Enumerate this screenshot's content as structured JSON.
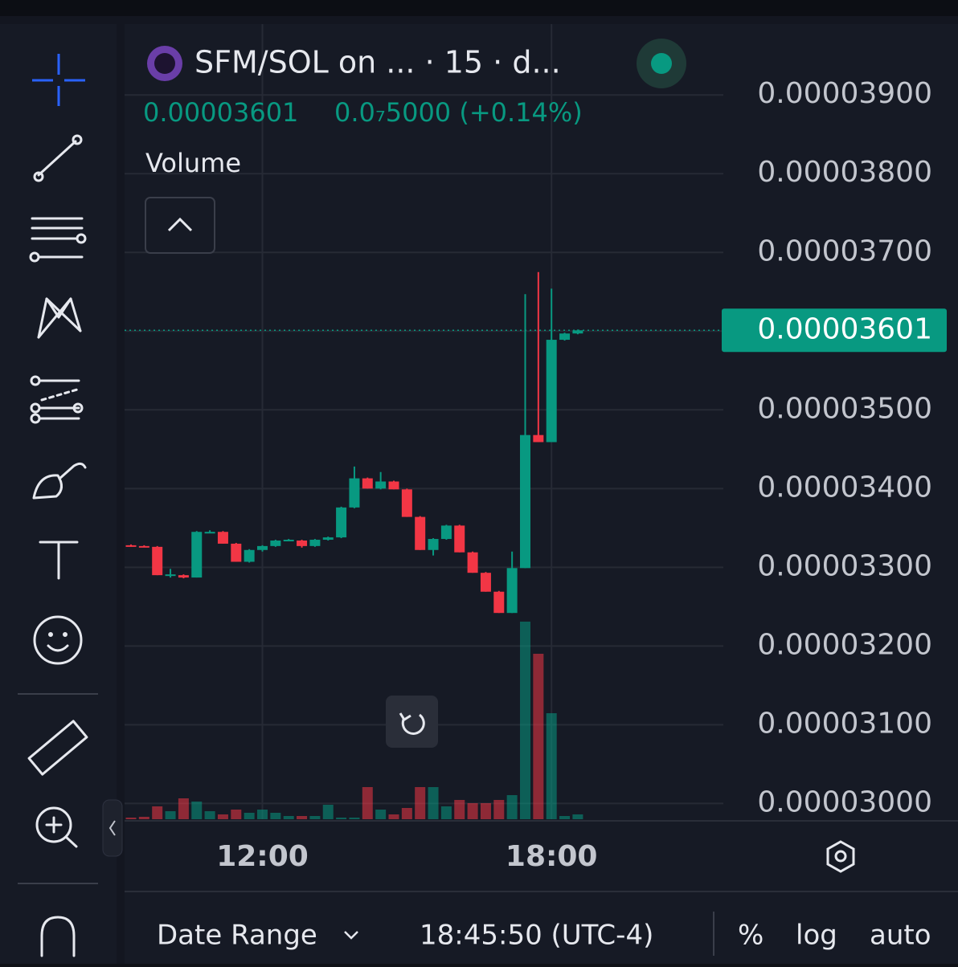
{
  "header": {
    "title": "SFM/SOL on ... · 15 · d...",
    "price": "0.00003601",
    "change": "0.0₇5000 (+0.14%)",
    "indicator": "Volume"
  },
  "footer": {
    "range": "Date Range",
    "clock": "18:45:50 (UTC-4)",
    "percent": "%",
    "log": "log",
    "auto": "auto"
  },
  "chart_data": {
    "type": "candlestick",
    "categories": [
      null,
      null,
      null,
      null,
      null,
      null,
      null,
      null,
      null,
      null,
      "12:00",
      null,
      null,
      null,
      null,
      null,
      null,
      null,
      null,
      null,
      null,
      null,
      null,
      null,
      null,
      null,
      null,
      null,
      null,
      null,
      null,
      null,
      "18:00",
      null,
      null
    ],
    "open": [
      3.328e-05,
      3.327e-05,
      3.326e-05,
      3.29e-05,
      3.29e-05,
      3.287e-05,
      3.345e-05,
      3.345e-05,
      3.33e-05,
      3.307e-05,
      3.322e-05,
      3.327e-05,
      3.334e-05,
      3.334e-05,
      3.327e-05,
      3.335e-05,
      3.338e-05,
      3.376e-05,
      3.413e-05,
      3.4e-05,
      3.409e-05,
      3.399e-05,
      3.364e-05,
      3.322e-05,
      3.336e-05,
      3.353e-05,
      3.319e-05,
      3.293e-05,
      3.269e-05,
      3.242e-05,
      3.299e-05,
      3.468e-05,
      3.459e-05,
      3.589e-05,
      3.597e-05
    ],
    "high": [
      3.329e-05,
      3.328e-05,
      3.327e-05,
      3.298e-05,
      3.291e-05,
      3.346e-05,
      3.347e-05,
      3.346e-05,
      3.331e-05,
      3.323e-05,
      3.328e-05,
      3.335e-05,
      3.336e-05,
      3.335e-05,
      3.336e-05,
      3.339e-05,
      3.377e-05,
      3.428e-05,
      3.414e-05,
      3.421e-05,
      3.41e-05,
      3.4e-05,
      3.365e-05,
      3.337e-05,
      3.354e-05,
      3.354e-05,
      3.32e-05,
      3.294e-05,
      3.27e-05,
      3.32e-05,
      3.647e-05,
      3.675e-05,
      3.654e-05,
      3.598e-05,
      3.602e-05
    ],
    "low": [
      3.326e-05,
      3.326e-05,
      3.29e-05,
      3.287e-05,
      3.286e-05,
      3.287e-05,
      3.344e-05,
      3.33e-05,
      3.307e-05,
      3.306e-05,
      3.32e-05,
      3.326e-05,
      3.333e-05,
      3.325e-05,
      3.326e-05,
      3.334e-05,
      3.337e-05,
      3.375e-05,
      3.4e-05,
      3.399e-05,
      3.399e-05,
      3.364e-05,
      3.322e-05,
      3.315e-05,
      3.335e-05,
      3.319e-05,
      3.293e-05,
      3.269e-05,
      3.242e-05,
      3.242e-05,
      3.299e-05,
      3.459e-05,
      3.459e-05,
      3.588e-05,
      3.596e-05
    ],
    "close": [
      3.327e-05,
      3.326e-05,
      3.29e-05,
      3.291e-05,
      3.287e-05,
      3.345e-05,
      3.345e-05,
      3.33e-05,
      3.307e-05,
      3.322e-05,
      3.327e-05,
      3.334e-05,
      3.335e-05,
      3.327e-05,
      3.335e-05,
      3.338e-05,
      3.376e-05,
      3.413e-05,
      3.4e-05,
      3.409e-05,
      3.399e-05,
      3.364e-05,
      3.322e-05,
      3.336e-05,
      3.353e-05,
      3.319e-05,
      3.293e-05,
      3.269e-05,
      3.242e-05,
      3.299e-05,
      3.468e-05,
      3.459e-05,
      3.589e-05,
      3.597e-05,
      3.601e-05
    ],
    "volume": [
      2,
      3,
      16,
      10,
      26,
      22,
      10,
      6,
      12,
      8,
      12,
      8,
      4,
      4,
      4,
      18,
      2,
      2,
      40,
      12,
      6,
      14,
      40,
      40,
      16,
      24,
      20,
      20,
      24,
      30,
      246,
      206,
      132,
      4,
      6
    ],
    "up_color": "#089981",
    "down_color": "#f23645",
    "last_price": 3.601e-05,
    "ylim": [
      2.98e-05,
      3.99e-05
    ],
    "yticks": [
      {
        "value": 3e-05,
        "label": "0.00003000"
      },
      {
        "value": 3.1e-05,
        "label": "0.00003100"
      },
      {
        "value": 3.2e-05,
        "label": "0.00003200"
      },
      {
        "value": 3.3e-05,
        "label": "0.00003300"
      },
      {
        "value": 3.4e-05,
        "label": "0.00003400"
      },
      {
        "value": 3.5e-05,
        "label": "0.00003500"
      },
      {
        "value": 3.6e-05,
        "label": "0.00003600"
      },
      {
        "value": 3.7e-05,
        "label": "0.00003700"
      },
      {
        "value": 3.8e-05,
        "label": "0.00003800"
      },
      {
        "value": 3.9e-05,
        "label": "0.00003900"
      }
    ],
    "grid": true
  }
}
